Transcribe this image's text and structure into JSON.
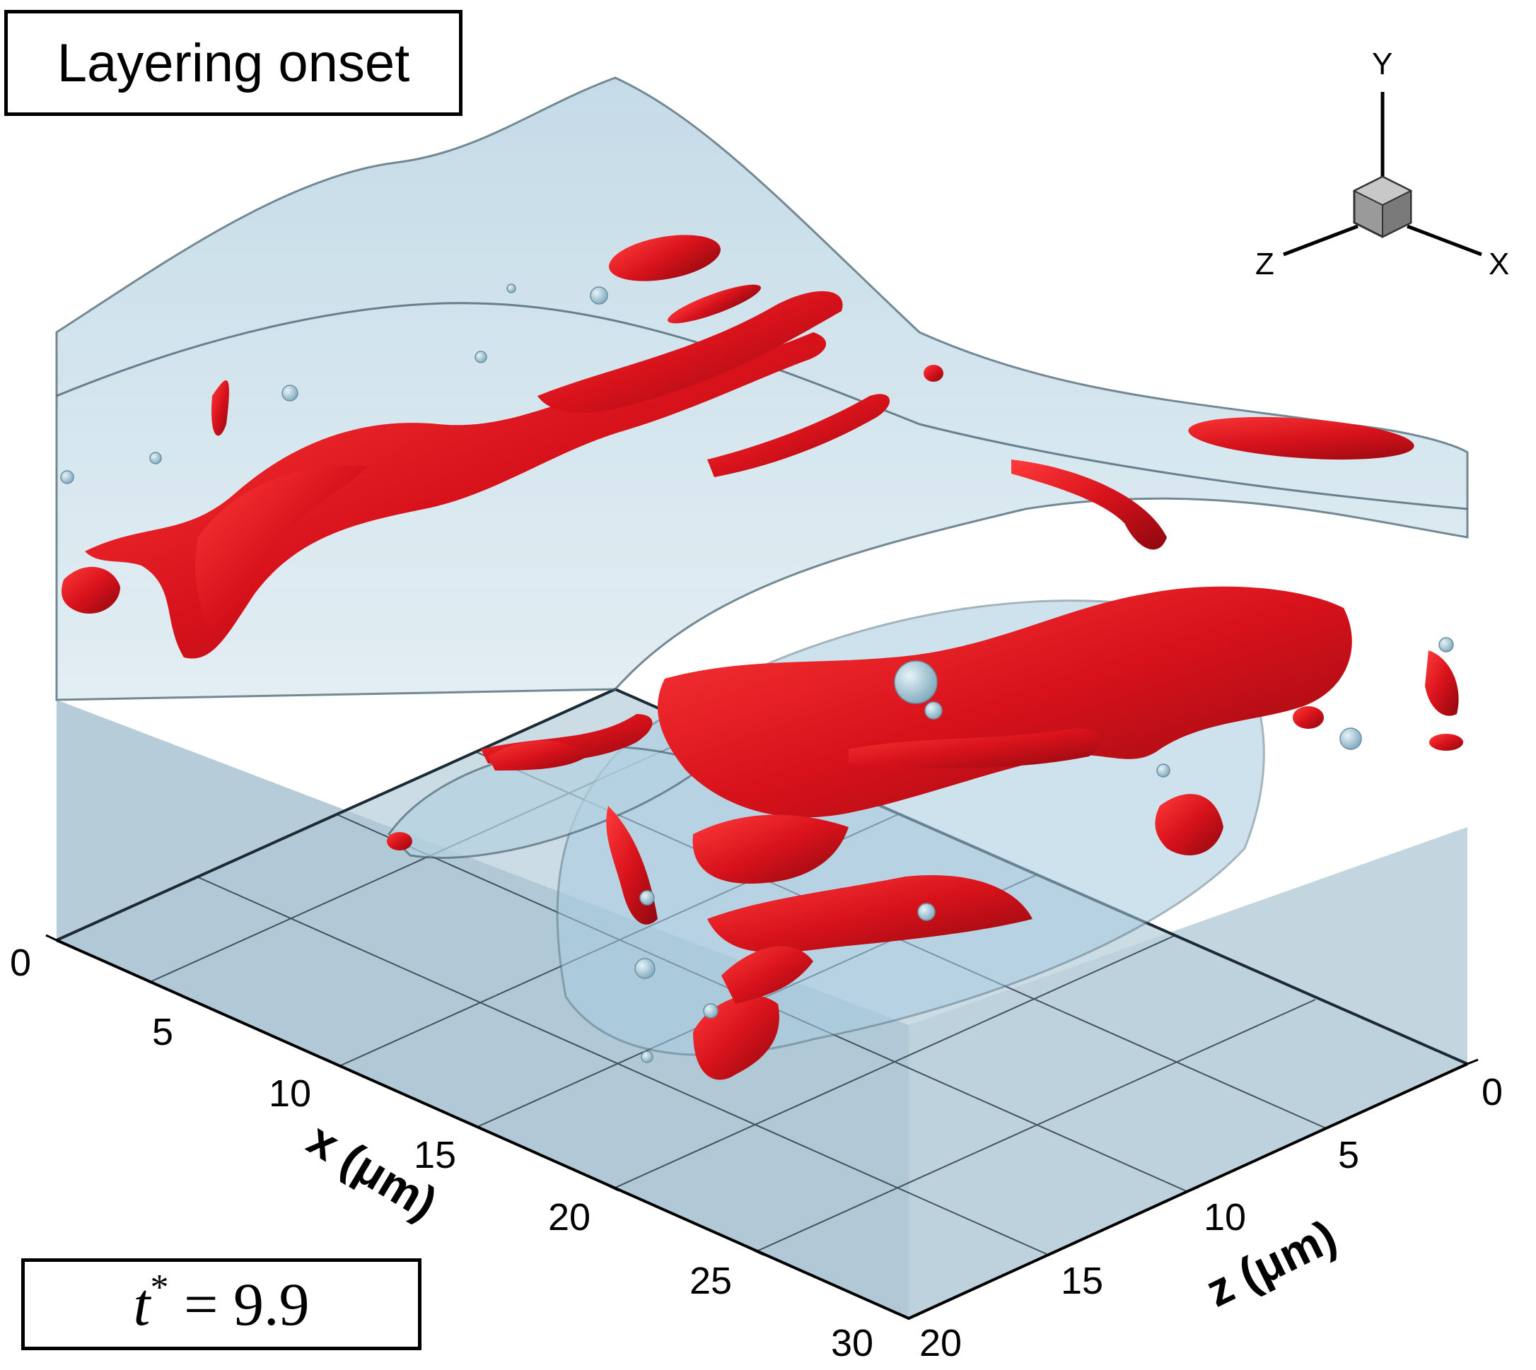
{
  "title_box": {
    "text": "Layering onset"
  },
  "time_box": {
    "symbol": "t",
    "superscript": "*",
    "relation": " = ",
    "value": "9.9"
  },
  "axes": {
    "x": {
      "label": "x (μm)",
      "ticks": [
        "0",
        "5",
        "10",
        "15",
        "20",
        "25",
        "30"
      ]
    },
    "z": {
      "label": "z (μm)",
      "ticks": [
        "0",
        "5",
        "10",
        "15",
        "20"
      ]
    }
  },
  "orientation_triad": {
    "y": "Y",
    "z": "Z",
    "x": "X"
  },
  "colors": {
    "vortex_structures": "#d8121b",
    "interface_surface": "#a9c9da",
    "floor_plane": "#bdd2dd",
    "axis_lines": "#000000"
  }
}
